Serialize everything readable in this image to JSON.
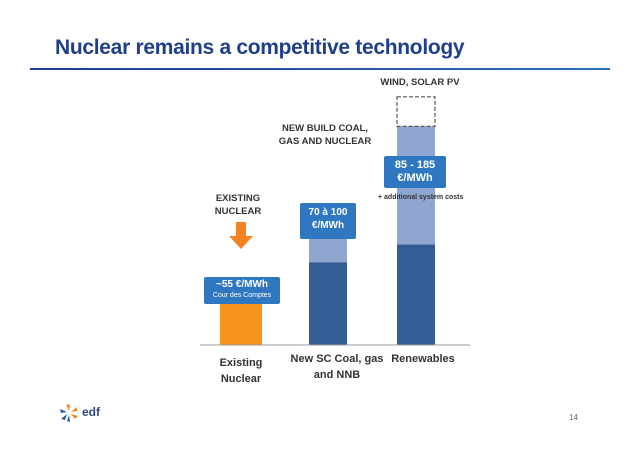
{
  "slide": {
    "title": "Nuclear remains a competitive technology",
    "page_number": "14",
    "logo_text": "edf"
  },
  "annotations": {
    "existing_nuclear": "EXISTING\nNUCLEAR",
    "new_build": "NEW BUILD COAL,\nGAS AND NUCLEAR",
    "wind_solar": "WIND, SOLAR PV",
    "additional_costs": "+ additional system costs"
  },
  "value_boxes": {
    "existing": {
      "main": "~55 €/MWh",
      "sub": "Cour des Comptes"
    },
    "new_build": "70 à 100\n€/MWh",
    "renewables": "85 - 185\n€/MWh"
  },
  "colors": {
    "title": "#1f3f8a",
    "existing_bar": "#f7941d",
    "dark_bar": "#335d94",
    "light_bar": "#8fa6d0",
    "value_box": "#2f77c0",
    "arrow": "#f58220"
  },
  "chart_data": {
    "type": "bar",
    "categories": [
      "Existing\nNuclear",
      "New SC Coal, gas\nand NNB",
      "Renewables"
    ],
    "unit": "€/MWh",
    "ylim": [
      0,
      220
    ],
    "grid": false,
    "series": [
      {
        "name": "",
        "values": [
          55,
          70,
          85
        ],
        "colors": [
          "#f7941d",
          "#335d94",
          "#335d94"
        ]
      },
      {
        "name": "",
        "values": [
          0,
          100,
          185
        ],
        "colors": [
          "#f7941d",
          "#8fa6d0",
          "#8fa6d0"
        ]
      }
    ],
    "renewables_extra_dashed_top": 210
  }
}
